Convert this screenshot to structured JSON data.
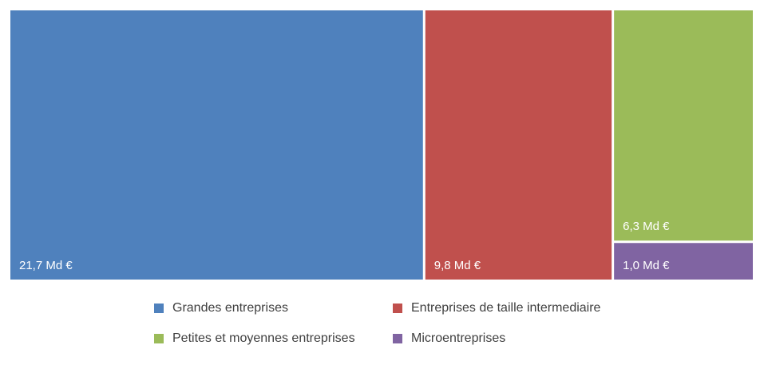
{
  "chart_data": {
    "type": "treemap",
    "series": [
      {
        "name": "Grandes entreprises",
        "value": 21.7,
        "label": "21,7 Md €",
        "color": "#4F81BD"
      },
      {
        "name": "Entreprises de taille intermediaire",
        "value": 9.8,
        "label": "9,8 Md €",
        "color": "#C0504D"
      },
      {
        "name": "Petites et moyennes entreprises",
        "value": 6.3,
        "label": "6,3 Md €",
        "color": "#9BBB59"
      },
      {
        "name": "Microentreprises",
        "value": 1.0,
        "label": "1,0 Md €",
        "color": "#8064A2"
      }
    ],
    "legend_position": "bottom",
    "grid": false
  }
}
